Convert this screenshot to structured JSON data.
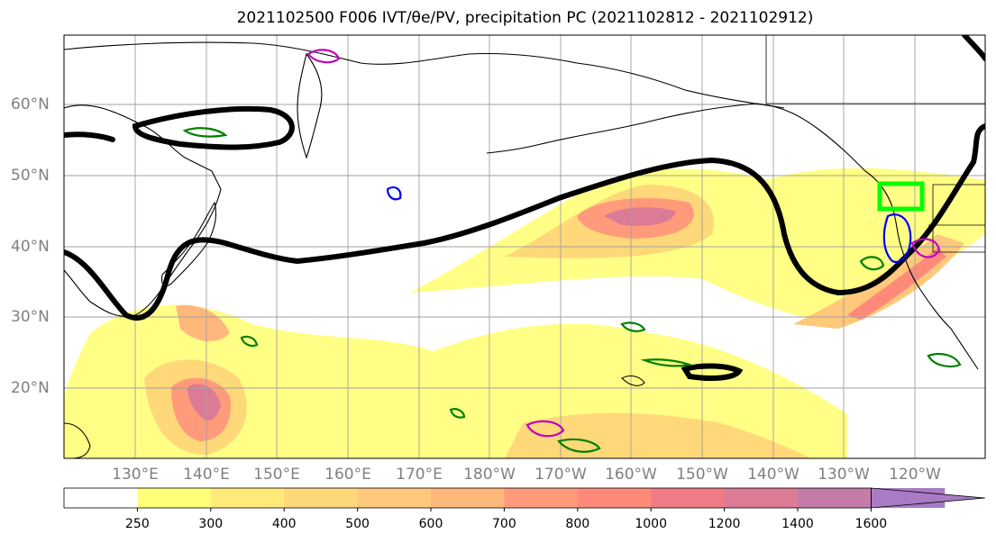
{
  "title": "2021102500 F006 IVT/θe/PV, precipitation PC (2021102812 - 2021102912)",
  "map": {
    "lat_labels": [
      "60°N",
      "50°N",
      "40°N",
      "30°N",
      "20°N"
    ],
    "lon_labels": [
      "130°E",
      "140°E",
      "150°E",
      "160°E",
      "170°E",
      "180°W",
      "170°W",
      "160°W",
      "150°W",
      "140°W",
      "130°W",
      "120°W"
    ],
    "extent": {
      "lon_min": 120,
      "lon_max": 250,
      "lat_min": 10,
      "lat_max": 70
    },
    "gridlines": true,
    "highlight_box_color": "#00ff00"
  },
  "colorbar": {
    "levels": [
      "250",
      "300",
      "400",
      "500",
      "600",
      "700",
      "800",
      "1000",
      "1200",
      "1400",
      "1600"
    ],
    "colors": [
      "#ffffff",
      "#ffff78",
      "#ffea7a",
      "#ffd87a",
      "#ffc87b",
      "#ffb87c",
      "#ff9a7b",
      "#ff8a7a",
      "#ee7b86",
      "#db7b96",
      "#c57ba8",
      "#a87bc4"
    ],
    "extend": "max"
  }
}
